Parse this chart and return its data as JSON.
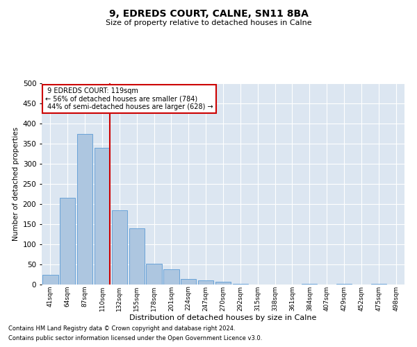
{
  "title": "9, EDREDS COURT, CALNE, SN11 8BA",
  "subtitle": "Size of property relative to detached houses in Calne",
  "xlabel": "Distribution of detached houses by size in Calne",
  "ylabel": "Number of detached properties",
  "property_label": "9 EDREDS COURT: 119sqm",
  "smaller_pct": 56,
  "smaller_count": 784,
  "larger_pct": 44,
  "larger_count": 628,
  "bin_labels": [
    "41sqm",
    "64sqm",
    "87sqm",
    "110sqm",
    "132sqm",
    "155sqm",
    "178sqm",
    "201sqm",
    "224sqm",
    "247sqm",
    "270sqm",
    "292sqm",
    "315sqm",
    "338sqm",
    "361sqm",
    "384sqm",
    "407sqm",
    "429sqm",
    "452sqm",
    "475sqm",
    "498sqm"
  ],
  "bar_values": [
    25,
    215,
    375,
    340,
    185,
    140,
    52,
    38,
    13,
    10,
    7,
    2,
    0,
    0,
    0,
    1,
    0,
    1,
    0,
    1,
    0
  ],
  "bar_color": "#adc6e0",
  "bar_edge_color": "#5b9bd5",
  "vline_color": "#cc0000",
  "annotation_box_color": "#cc0000",
  "background_color": "#dce6f1",
  "grid_color": "#ffffff",
  "ylim": [
    0,
    500
  ],
  "yticks": [
    0,
    50,
    100,
    150,
    200,
    250,
    300,
    350,
    400,
    450,
    500
  ],
  "footer1": "Contains HM Land Registry data © Crown copyright and database right 2024.",
  "footer2": "Contains public sector information licensed under the Open Government Licence v3.0."
}
